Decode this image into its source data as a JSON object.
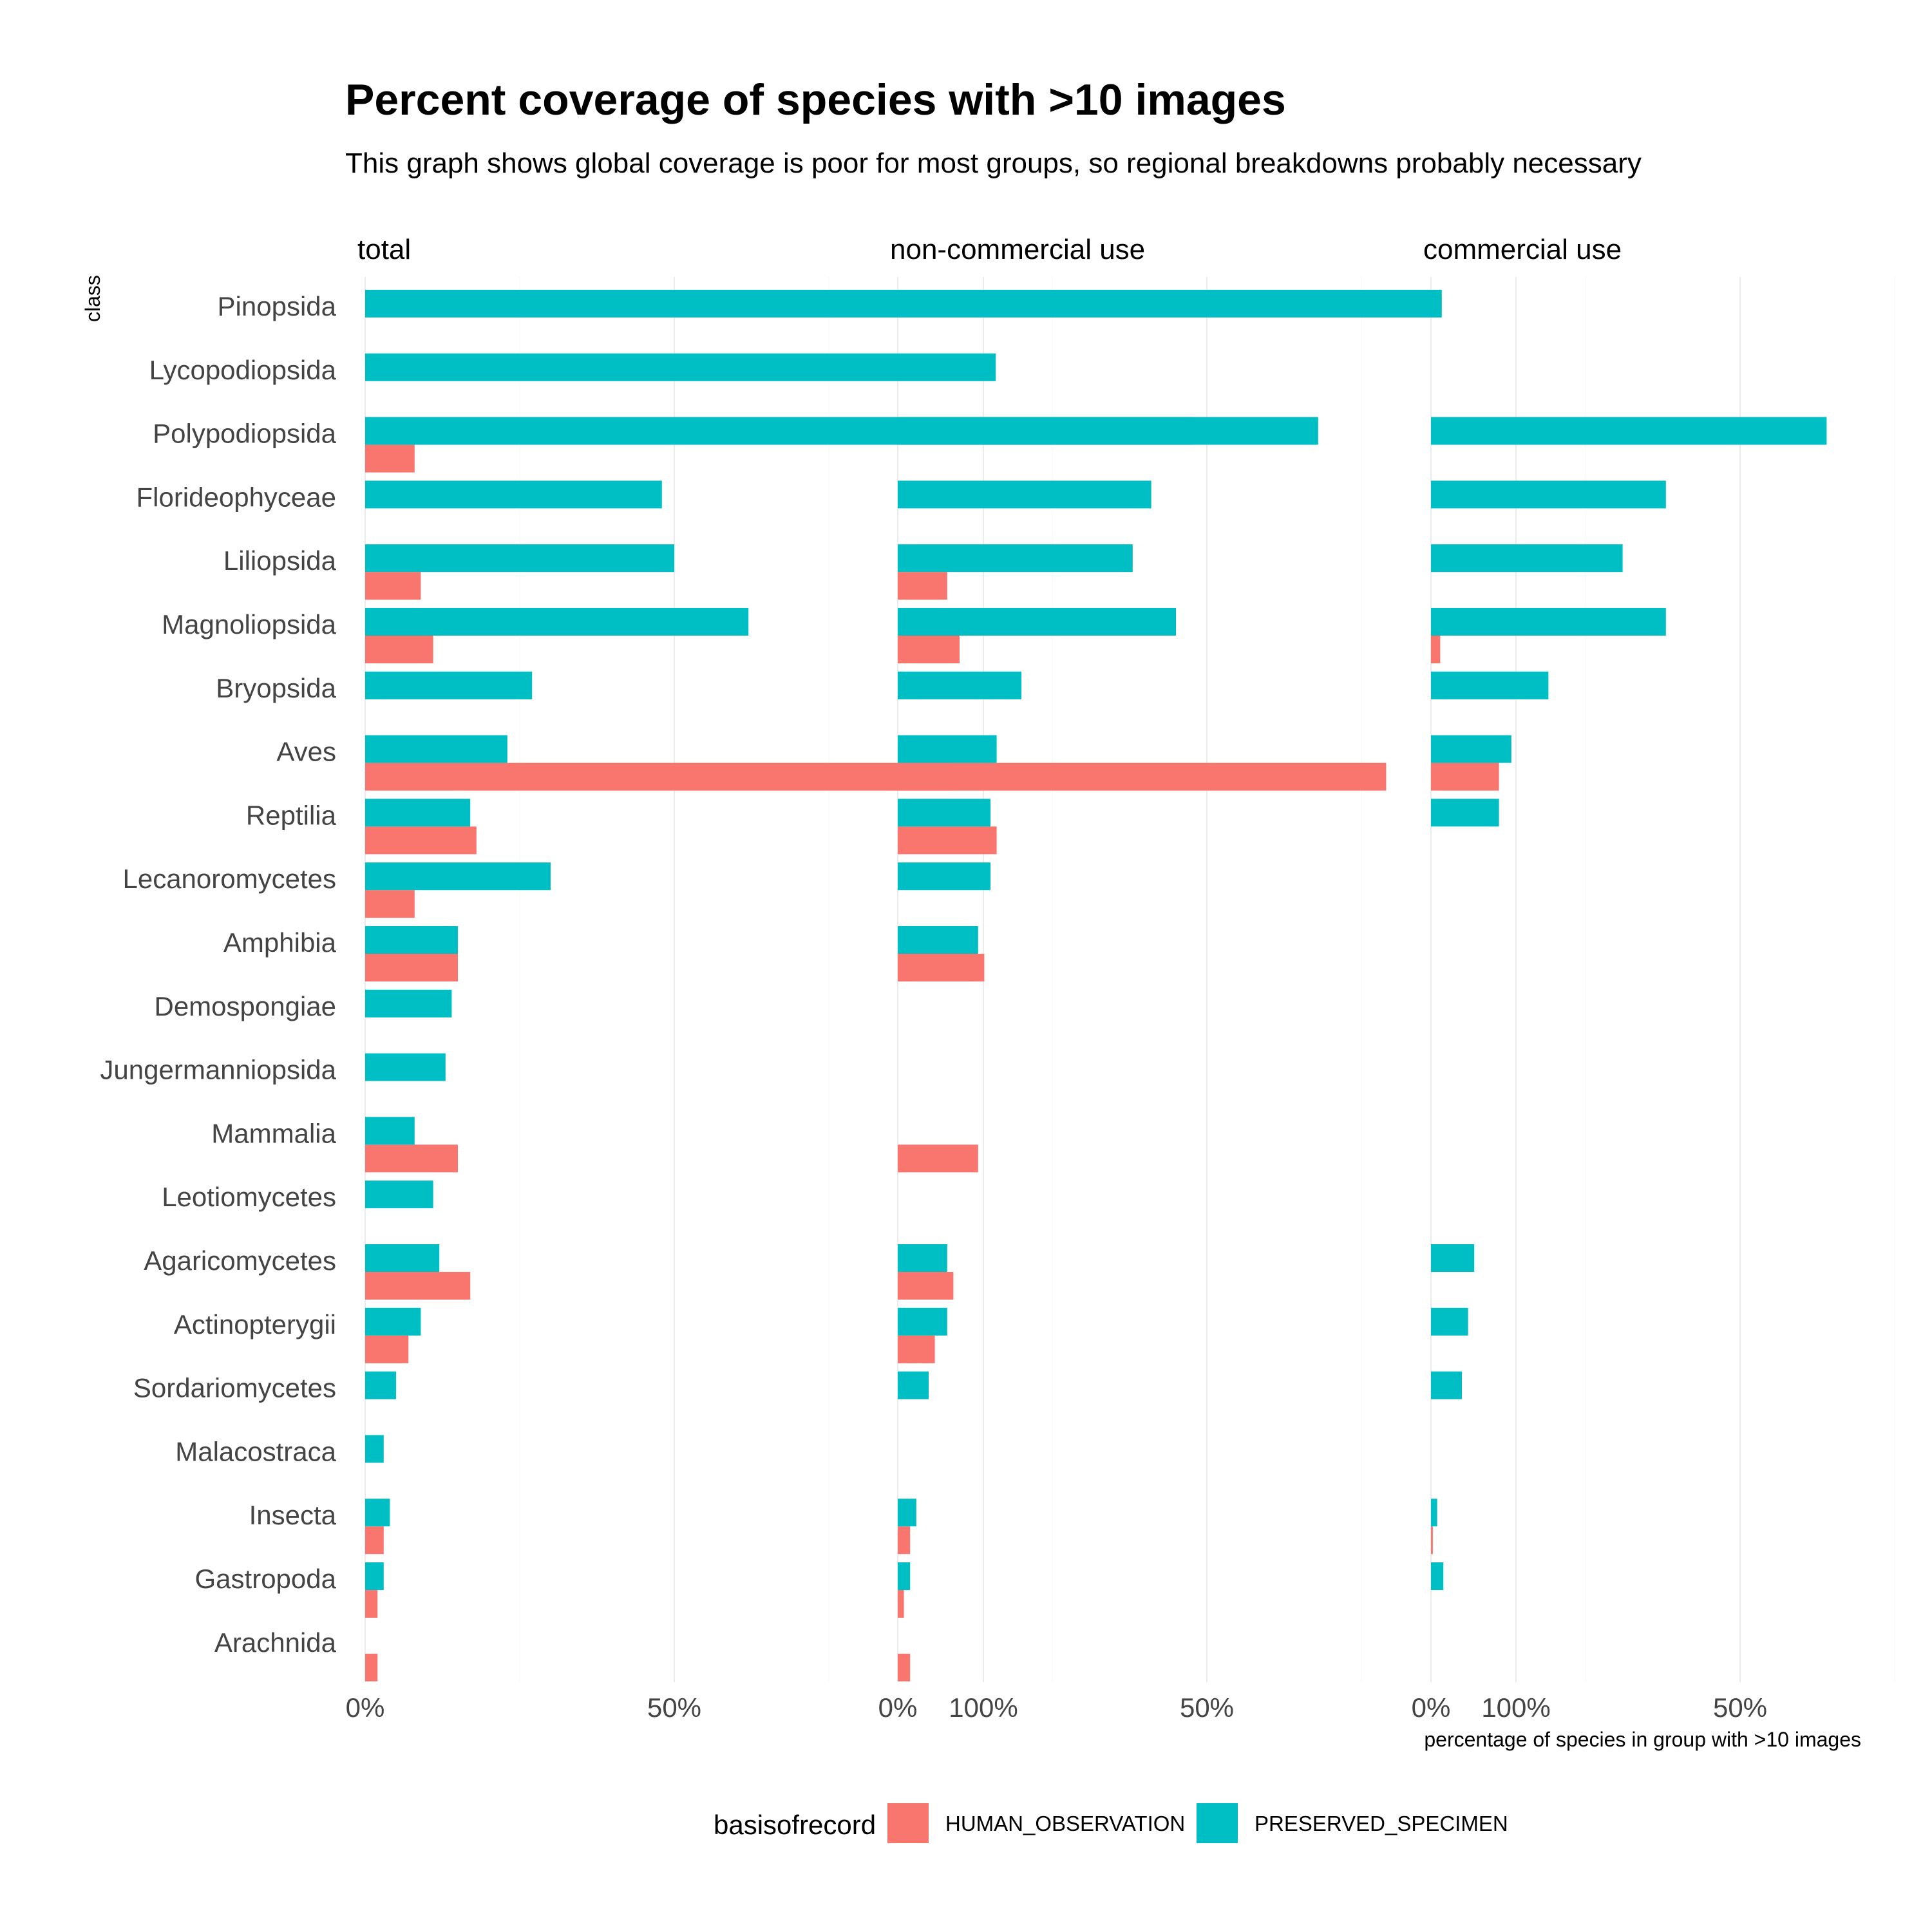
{
  "chart_data": {
    "type": "bar",
    "orientation": "horizontal",
    "title": "Percent coverage of species with >10 images",
    "subtitle": "This graph shows global coverage is poor for most groups, so regional breakdowns probably necessary",
    "ylabel": "class",
    "xlabel": "percentage of species in group with >10 images",
    "xlim": [
      0,
      130
    ],
    "x_ticks": [
      "0%",
      "50%",
      "100%"
    ],
    "legend": {
      "title": "basisofrecord",
      "position": "bottom",
      "entries": [
        {
          "name": "HUMAN_OBSERVATION",
          "color": "#F8766D"
        },
        {
          "name": "PRESERVED_SPECIMEN",
          "color": "#00BFC4"
        }
      ]
    },
    "categories": [
      "Pinopsida",
      "Lycopodiopsida",
      "Polypodiopsida",
      "Florideophyceae",
      "Liliopsida",
      "Magnoliopsida",
      "Bryopsida",
      "Aves",
      "Reptilia",
      "Lecanoromycetes",
      "Amphibia",
      "Demospongiae",
      "Jungermanniopsida",
      "Mammalia",
      "Leotiomycetes",
      "Agaricomycetes",
      "Actinopterygii",
      "Sordariomycetes",
      "Malacostraca",
      "Insecta",
      "Gastropoda",
      "Arachnida"
    ],
    "facets": [
      {
        "name": "total",
        "series": [
          {
            "name": "HUMAN_OBSERVATION",
            "values": [
              null,
              null,
              8,
              null,
              9,
              11,
              null,
              95,
              18,
              8,
              15,
              null,
              null,
              15,
              null,
              17,
              7,
              null,
              null,
              3,
              2,
              2
            ]
          },
          {
            "name": "PRESERVED_SPECIMEN",
            "values": [
              117,
              102,
              134,
              48,
              50,
              62,
              27,
              23,
              17,
              30,
              15,
              14,
              13,
              8,
              11,
              12,
              9,
              5,
              3,
              4,
              3,
              null
            ]
          }
        ]
      },
      {
        "name": "non-commercial use",
        "series": [
          {
            "name": "HUMAN_OBSERVATION",
            "values": [
              null,
              null,
              null,
              null,
              8,
              10,
              null,
              79,
              16,
              null,
              14,
              null,
              null,
              13,
              null,
              9,
              6,
              null,
              null,
              2,
              1,
              2
            ]
          },
          {
            "name": "PRESERVED_SPECIMEN",
            "values": [
              88,
              null,
              68,
              41,
              38,
              45,
              20,
              16,
              15,
              15,
              13,
              null,
              null,
              null,
              null,
              8,
              8,
              5,
              null,
              3,
              2,
              null
            ]
          }
        ]
      },
      {
        "name": "commercial use",
        "series": [
          {
            "name": "HUMAN_OBSERVATION",
            "values": [
              null,
              null,
              null,
              null,
              null,
              1.5,
              null,
              11,
              null,
              null,
              null,
              null,
              null,
              null,
              null,
              null,
              null,
              null,
              null,
              0.3,
              null,
              null
            ]
          },
          {
            "name": "PRESERVED_SPECIMEN",
            "values": [
              null,
              null,
              64,
              38,
              31,
              38,
              19,
              13,
              11,
              null,
              null,
              null,
              null,
              null,
              null,
              7,
              6,
              5,
              null,
              1,
              2,
              null
            ]
          }
        ]
      }
    ]
  }
}
